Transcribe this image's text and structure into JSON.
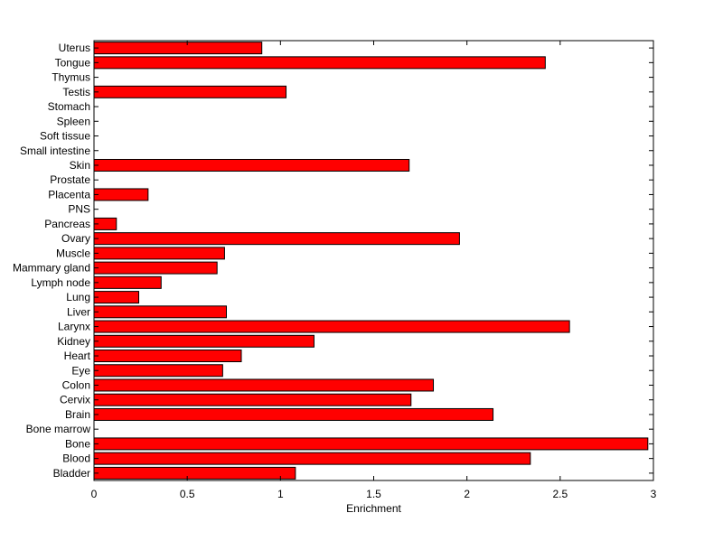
{
  "chart_data": {
    "type": "bar",
    "orientation": "horizontal",
    "title": "",
    "xlabel": "Enrichment",
    "ylabel": "",
    "xlim": [
      0,
      3
    ],
    "xticks": [
      0,
      0.5,
      1,
      1.5,
      2,
      2.5,
      3
    ],
    "xtick_labels": [
      "0",
      "0.5",
      "1",
      "1.5",
      "2",
      "2.5",
      "3"
    ],
    "grid": false,
    "colors": {
      "bar_fill": "#ff0000",
      "bar_edge": "#000000"
    },
    "categories": [
      "Bladder",
      "Blood",
      "Bone",
      "Bone marrow",
      "Brain",
      "Cervix",
      "Colon",
      "Eye",
      "Heart",
      "Kidney",
      "Larynx",
      "Liver",
      "Lung",
      "Lymph node",
      "Mammary gland",
      "Muscle",
      "Ovary",
      "Pancreas",
      "PNS",
      "Placenta",
      "Prostate",
      "Skin",
      "Small intestine",
      "Soft tissue",
      "Spleen",
      "Stomach",
      "Testis",
      "Thymus",
      "Tongue",
      "Uterus"
    ],
    "values": [
      1.08,
      2.34,
      2.97,
      0,
      2.14,
      1.7,
      1.82,
      0.69,
      0.79,
      1.18,
      2.55,
      0.71,
      0.24,
      0.36,
      0.66,
      0.7,
      1.96,
      0.12,
      0,
      0.29,
      0,
      1.69,
      0,
      0,
      0,
      0,
      1.03,
      0,
      2.42,
      0.9
    ]
  }
}
